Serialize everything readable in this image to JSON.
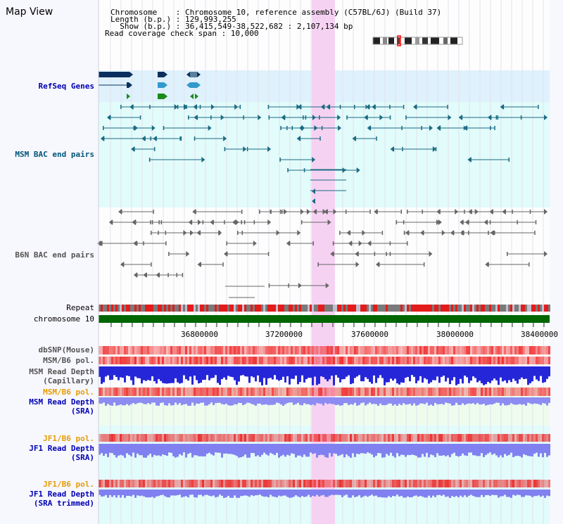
{
  "header": {
    "title": "Map View",
    "info_lines": [
      "Chromosome    : Chromosome 10, reference assembly (C57BL/6J) (Build 37)",
      "Length (b.p.) : 129,993,255",
      "  Show (b.p.) : 36,415,549-38,522,682 : 2,107,134 bp",
      "Read coverage check span : 10,000"
    ]
  },
  "tracks": {
    "refseq": "RefSeq Genes",
    "msm_bac": "MSM BAC end pairs",
    "b6n_bac": "B6N BAC end pairs",
    "repeat": "Repeat",
    "chromosome": "chromosome 10",
    "dbsnp": "dbSNP(Mouse)",
    "msm_b6_pol": "MSM/B6 pol.",
    "msm_read_depth_cap_1": "MSM Read Depth",
    "msm_read_depth_cap_2": "(Capillary)",
    "msm_b6_pol_sra": "MSM/B6 pol.",
    "msm_read_depth_sra_1": "MSM Read Depth",
    "msm_read_depth_sra_2": "(SRA)",
    "jf1_b6_pol": "JF1/B6 pol.",
    "jf1_read_depth_1": "JF1 Read Depth",
    "jf1_read_depth_2": "(SRA)",
    "jf1_b6_pol_t": "JF1/B6 pol.",
    "jf1_read_depth_t_1": "JF1 Read Depth",
    "jf1_read_depth_t_2": "(SRA trimmed)"
  },
  "axis": {
    "ticks": [
      "36800000",
      "37200000",
      "37600000",
      "38000000",
      "38400000"
    ]
  },
  "colors": {
    "refseq_bg": "#dff1fc",
    "msm_bg": "#e2fbfb",
    "highlight": "#f6d2f2",
    "chromosome": "#006600",
    "repeat_red": "#e41b1b",
    "repeat_grey": "#7a7a7a",
    "depth_blue": "#2222dd",
    "depth_light": "#8888f0",
    "pol_red": "#ff5555",
    "orange_label": "#e69c00",
    "blue_label": "#0000b4",
    "teal_label": "#005577"
  }
}
